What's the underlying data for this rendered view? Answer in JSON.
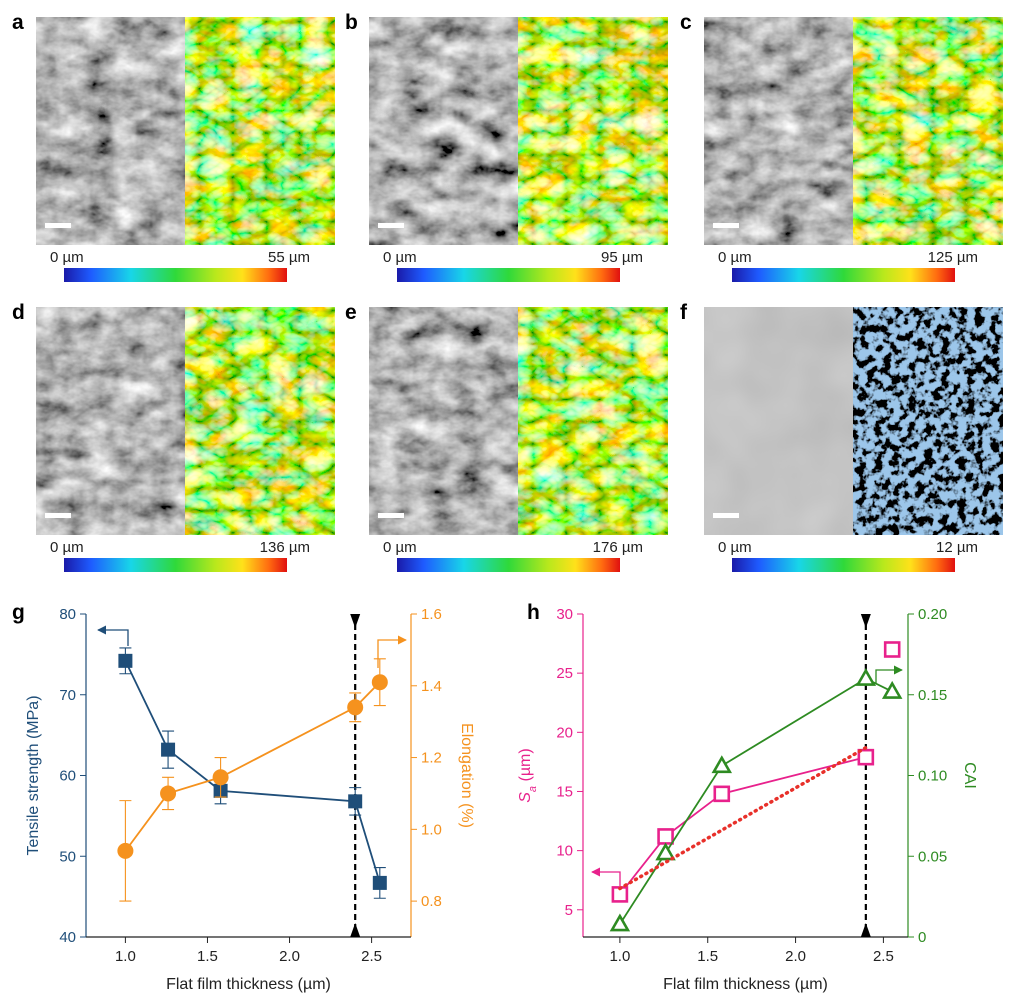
{
  "panels": [
    {
      "label": "a",
      "scale_min": "0 µm",
      "scale_max": "55 µm"
    },
    {
      "label": "b",
      "scale_min": "0 µm",
      "scale_max": "95 µm"
    },
    {
      "label": "c",
      "scale_min": "0 µm",
      "scale_max": "125 µm"
    },
    {
      "label": "d",
      "scale_min": "0 µm",
      "scale_max": "136 µm"
    },
    {
      "label": "e",
      "scale_min": "0 µm",
      "scale_max": "176 µm"
    },
    {
      "label": "f",
      "scale_min": "0 µm",
      "scale_max": "12 µm"
    }
  ],
  "chart_data": [
    {
      "type": "line",
      "panel": "g",
      "xlabel": "Flat film thickness (µm)",
      "ylabel": "Tensile strength (MPa)",
      "y2label": "Elongation (%)",
      "x": [
        1.0,
        1.26,
        1.58,
        2.4,
        2.55
      ],
      "xlim": [
        0.76,
        2.74
      ],
      "xticks": [
        {
          "value": 1,
          "label": "1.0"
        },
        1.5,
        {
          "value": 2,
          "label": "2.0"
        },
        2.5
      ],
      "ylim": [
        40,
        80
      ],
      "yticks": [
        40,
        50,
        60,
        70,
        80
      ],
      "ycolor": "#1f4e79",
      "y2lim": [
        0.7,
        1.6
      ],
      "y2ticks": [
        0.8,
        {
          "value": 1,
          "label": "1.0"
        },
        1.2,
        1.4,
        1.6
      ],
      "y2color": "#f5921e",
      "vline": 2.4,
      "series": [
        {
          "color": "#1f4e79",
          "marker": "square",
          "filled": true,
          "line": "solid",
          "values": [
            74.2,
            63.2,
            58.1,
            56.8,
            46.7
          ],
          "errors": [
            1.6,
            2.3,
            1.6,
            1.7,
            1.9
          ]
        },
        {
          "color": "#f5921e",
          "marker": "circle",
          "filled": true,
          "line": "solid",
          "axis": "y2",
          "values": [
            0.94,
            1.1,
            1.145,
            1.34,
            1.41
          ],
          "errors": [
            0.14,
            0.045,
            0.055,
            0.04,
            0.065
          ]
        }
      ]
    },
    {
      "type": "line",
      "panel": "h",
      "xlabel": "Flat film thickness (µm)",
      "ylabel": {
        "symbol": "S",
        "subscript": "a",
        "unit": " (µm)"
      },
      "y2label": "CAI",
      "x": [
        1.0,
        1.26,
        1.58,
        2.4,
        2.55
      ],
      "xlim": [
        0.79,
        2.64
      ],
      "xticks": [
        {
          "value": 1,
          "label": "1.0"
        },
        1.5,
        {
          "value": 2,
          "label": "2.0"
        },
        2.5
      ],
      "ylim": [
        2.7,
        30
      ],
      "yticks": [
        5,
        10,
        15,
        20,
        25,
        30
      ],
      "ycolor": "#e8218c",
      "y2lim": [
        0,
        0.2
      ],
      "y2ticks": [
        0,
        0.05,
        {
          "value": 0.1,
          "label": "0.10"
        },
        0.15,
        {
          "value": 0.2,
          "label": "0.20"
        }
      ],
      "y2color": "#2e8b22",
      "vline": 2.4,
      "series": [
        {
          "color": "#e8218c",
          "marker": "square",
          "filled": false,
          "line": "solid",
          "values": [
            6.3,
            11.2,
            14.8,
            17.9,
            null
          ]
        },
        {
          "color": "#e8218c",
          "marker": "square",
          "filled": false,
          "line": "none",
          "values": [
            null,
            null,
            null,
            null,
            27.0
          ]
        },
        {
          "color": "#2e8b22",
          "marker": "triangle",
          "filled": false,
          "line": "solid",
          "axis": "y2",
          "values": [
            0.008,
            0.052,
            0.106,
            0.16,
            0.152
          ]
        },
        {
          "color": "#e8302a",
          "marker": "none",
          "line": "dotted",
          "x": [
            1.0,
            2.4
          ],
          "values": [
            6.8,
            18.7
          ]
        }
      ]
    }
  ]
}
